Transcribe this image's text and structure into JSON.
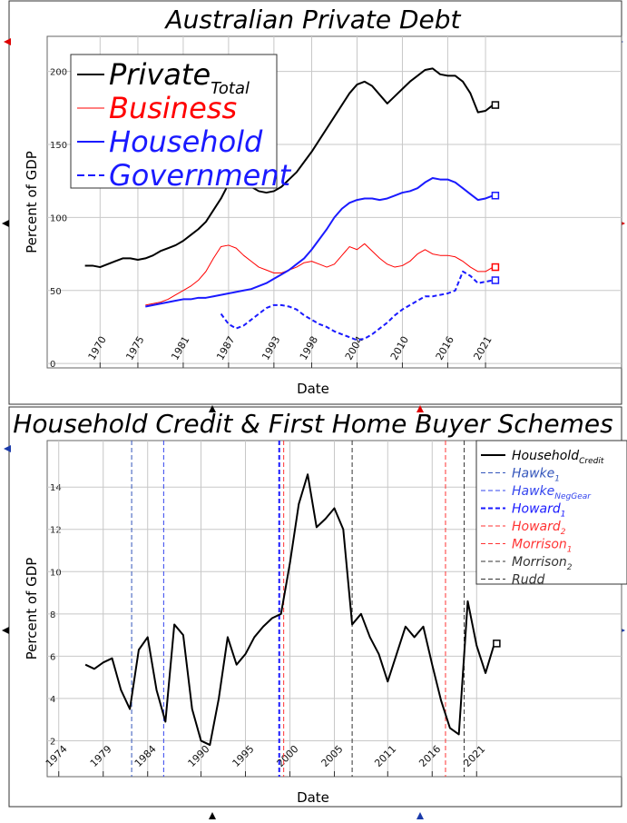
{
  "chart_data": [
    {
      "type": "line",
      "title": "Australian Private Debt",
      "xlabel": "Date",
      "ylabel": "Percent of GDP",
      "x": [
        1968,
        1969,
        1970,
        1971,
        1972,
        1973,
        1974,
        1975,
        1976,
        1977,
        1978,
        1979,
        1980,
        1981,
        1982,
        1983,
        1984,
        1985,
        1986,
        1987,
        1988,
        1989,
        1990,
        1991,
        1992,
        1993,
        1994,
        1995,
        1996,
        1997,
        1998,
        1999,
        2000,
        2001,
        2002,
        2003,
        2004,
        2005,
        2006,
        2007,
        2008,
        2009,
        2010,
        2011,
        2012,
        2013,
        2014,
        2015,
        2016,
        2017,
        2018,
        2019,
        2020,
        2021,
        2022
      ],
      "xlim": [
        1963,
        2039
      ],
      "ylim": [
        -3,
        224
      ],
      "xticks": [
        1970,
        1975,
        1981,
        1987,
        1993,
        1998,
        2004,
        2010,
        2016,
        2021
      ],
      "yticks": [
        0,
        50,
        100,
        150,
        200
      ],
      "grid": true,
      "legend": "upper left",
      "series": [
        {
          "name": "Private",
          "sub": "Total",
          "color": "#000000",
          "linestyle": "solid",
          "linewidth": 2,
          "values": [
            67,
            67,
            66,
            68,
            70,
            72,
            72,
            71,
            72,
            74,
            77,
            79,
            81,
            84,
            88,
            92,
            97,
            105,
            113,
            123,
            127,
            125,
            121,
            118,
            117,
            118,
            121,
            126,
            131,
            138,
            145,
            153,
            161,
            169,
            177,
            185,
            191,
            193,
            190,
            184,
            178,
            183,
            188,
            193,
            197,
            201,
            202,
            198,
            197,
            197,
            193,
            185,
            172,
            173,
            177
          ]
        },
        {
          "name": "Business",
          "color": "#ff0000",
          "linestyle": "solid",
          "linewidth": 1,
          "values": [
            null,
            null,
            null,
            null,
            null,
            null,
            null,
            null,
            40,
            41,
            42,
            44,
            47,
            50,
            53,
            57,
            63,
            72,
            80,
            81,
            79,
            74,
            70,
            66,
            64,
            62,
            62,
            64,
            66,
            69,
            70,
            68,
            66,
            68,
            74,
            80,
            78,
            82,
            77,
            72,
            68,
            66,
            67,
            70,
            75,
            78,
            75,
            74,
            74,
            73,
            70,
            66,
            63,
            63,
            66
          ]
        },
        {
          "name": "Household",
          "color": "#1a1aff",
          "linestyle": "solid",
          "linewidth": 2,
          "values": [
            null,
            null,
            null,
            null,
            null,
            null,
            null,
            null,
            39,
            40,
            41,
            42,
            43,
            44,
            44,
            45,
            45,
            46,
            47,
            48,
            49,
            50,
            51,
            53,
            55,
            58,
            61,
            64,
            68,
            72,
            78,
            85,
            92,
            100,
            106,
            110,
            112,
            113,
            113,
            112,
            113,
            115,
            117,
            118,
            120,
            124,
            127,
            126,
            126,
            124,
            120,
            116,
            112,
            113,
            115
          ]
        },
        {
          "name": "Government",
          "color": "#1a1aff",
          "linestyle": "dashed",
          "linewidth": 2,
          "values": [
            null,
            null,
            null,
            null,
            null,
            null,
            null,
            null,
            null,
            null,
            null,
            null,
            null,
            null,
            null,
            null,
            null,
            null,
            34,
            27,
            24,
            26,
            30,
            34,
            38,
            40,
            40,
            39,
            37,
            33,
            30,
            27,
            25,
            22,
            20,
            18,
            16,
            17,
            20,
            24,
            28,
            33,
            37,
            40,
            43,
            46,
            46,
            47,
            48,
            50,
            63,
            60,
            55,
            56,
            57
          ]
        }
      ]
    },
    {
      "type": "line",
      "title": "Household Credit & First Home Buyer Schemes",
      "xlabel": "Date",
      "ylabel": "Percent of GDP",
      "x": [
        1977,
        1978,
        1979,
        1980,
        1981,
        1982,
        1983,
        1984,
        1985,
        1986,
        1987,
        1988,
        1989,
        1990,
        1991,
        1992,
        1993,
        1994,
        1995,
        1996,
        1997,
        1998,
        1999,
        2000,
        2001,
        2002,
        2003,
        2004,
        2005,
        2006,
        2007,
        2008,
        2009,
        2010,
        2011,
        2012,
        2013,
        2014,
        2015,
        2016,
        2017,
        2018,
        2019,
        2020,
        2021,
        2022,
        2023
      ],
      "xlim": [
        1972.7,
        2037.3
      ],
      "ylim": [
        0.3,
        16.2
      ],
      "xticks": [
        1974,
        1979,
        1984,
        1990,
        1995,
        2000,
        2005,
        2011,
        2016,
        2021
      ],
      "yticks": [
        2,
        4,
        6,
        8,
        10,
        12,
        14
      ],
      "grid": true,
      "legend": "upper right",
      "series": [
        {
          "name": "Household",
          "sub": "Credit",
          "color": "#000000",
          "linestyle": "solid",
          "linewidth": 2,
          "values": [
            5.6,
            5.4,
            5.7,
            5.9,
            4.4,
            3.5,
            6.3,
            6.9,
            4.4,
            2.9,
            7.5,
            7.0,
            3.5,
            2.0,
            1.8,
            4.0,
            6.9,
            5.6,
            6.1,
            6.9,
            7.4,
            7.8,
            8.0,
            10.4,
            13.2,
            14.6,
            12.1,
            12.5,
            13.0,
            12.0,
            7.5,
            8.0,
            6.9,
            6.1,
            4.8,
            6.1,
            7.4,
            6.9,
            7.4,
            5.6,
            3.9,
            2.6,
            2.3,
            8.6,
            6.5,
            5.2,
            6.6
          ]
        }
      ],
      "events": [
        {
          "name": "Hawke",
          "sub": "1",
          "color": "#3355bb",
          "linestyle": "dashed",
          "linewidth": 1,
          "x": 1982.2
        },
        {
          "name": "Hawke",
          "sub": "NegGear",
          "color": "#3344ee",
          "linestyle": "dashed",
          "linewidth": 1,
          "x": 1985.8
        },
        {
          "name": "Howard",
          "sub": "1",
          "color": "#1a1aff",
          "linestyle": "dashed",
          "linewidth": 2,
          "x": 1998.8
        },
        {
          "name": "Howard",
          "sub": "2",
          "color": "#ff3333",
          "linestyle": "dashed",
          "linewidth": 1,
          "x": 1999.3
        },
        {
          "name": "Morrison",
          "sub": "1",
          "color": "#ff3333",
          "linestyle": "dashed",
          "linewidth": 1,
          "x": 2017.5
        },
        {
          "name": "Morrison",
          "sub": "2",
          "color": "#333333",
          "linestyle": "dashed",
          "linewidth": 1,
          "x": 2019.6
        },
        {
          "name": "Rudd",
          "color": "#333333",
          "linestyle": "dashed",
          "linewidth": 1,
          "x": 2007.0
        }
      ]
    }
  ]
}
